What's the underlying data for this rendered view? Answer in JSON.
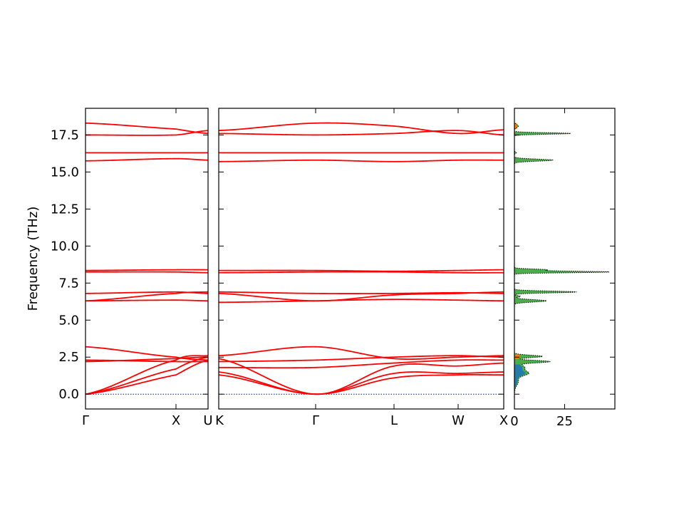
{
  "chart_data": {
    "type": "line",
    "ylabel": "Frequency (THz)",
    "ylim": [
      -1.0,
      19.3
    ],
    "yticks": [
      "0.0",
      "2.5",
      "5.0",
      "7.5",
      "10.0",
      "12.5",
      "15.0",
      "17.5"
    ],
    "colors": {
      "bands": "#ff0000",
      "zero_line": "#0000ff",
      "dos_total": "#000000",
      "dos_fill": "#2ca02c",
      "dos_low": "#1f77b4",
      "dos_high": "#ff7f0e"
    },
    "panels": [
      {
        "kpoints": [
          "Γ",
          "X",
          "U"
        ],
        "bands": [
          [
            0.0,
            1.3,
            2.3
          ],
          [
            0.0,
            1.7,
            2.5
          ],
          [
            0.0,
            2.3,
            2.6
          ],
          [
            2.2,
            2.4,
            2.5
          ],
          [
            2.3,
            2.2,
            2.2
          ],
          [
            3.2,
            2.5,
            2.3
          ],
          [
            6.3,
            6.35,
            6.3
          ],
          [
            6.3,
            6.8,
            6.9
          ],
          [
            6.8,
            6.9,
            6.8
          ],
          [
            8.25,
            8.25,
            8.2
          ],
          [
            8.35,
            8.4,
            8.4
          ],
          [
            15.75,
            15.9,
            15.8
          ],
          [
            16.3,
            16.3,
            16.3
          ],
          [
            17.5,
            17.5,
            17.8
          ],
          [
            18.3,
            17.9,
            17.6
          ]
        ]
      },
      {
        "kpoints": [
          "K",
          "Γ",
          "L",
          "W",
          "X"
        ],
        "bands": [
          [
            1.3,
            0.0,
            1.1,
            1.3,
            1.3
          ],
          [
            1.5,
            0.0,
            1.4,
            1.4,
            1.5
          ],
          [
            2.4,
            0.0,
            1.9,
            1.9,
            2.1
          ],
          [
            1.8,
            1.8,
            2.1,
            2.3,
            2.3
          ],
          [
            2.2,
            2.3,
            2.5,
            2.6,
            2.5
          ],
          [
            2.6,
            3.2,
            2.4,
            2.5,
            2.6
          ],
          [
            6.2,
            6.3,
            6.4,
            6.35,
            6.3
          ],
          [
            6.8,
            6.3,
            6.7,
            6.8,
            6.9
          ],
          [
            6.9,
            6.8,
            6.8,
            6.85,
            6.8
          ],
          [
            8.2,
            8.25,
            8.25,
            8.2,
            8.2
          ],
          [
            8.35,
            8.35,
            8.3,
            8.35,
            8.4
          ],
          [
            15.7,
            15.8,
            15.7,
            15.8,
            15.8
          ],
          [
            16.3,
            16.3,
            16.3,
            16.3,
            16.3
          ],
          [
            17.6,
            17.5,
            17.6,
            17.8,
            17.5
          ],
          [
            17.8,
            18.3,
            18.1,
            17.6,
            17.85
          ]
        ]
      }
    ],
    "dos": {
      "xticks": [
        "0",
        "25"
      ],
      "xlim": [
        0,
        50
      ],
      "peaks": [
        {
          "freq": 0.9,
          "height": 2,
          "width": 0.3
        },
        {
          "freq": 1.4,
          "height": 6,
          "width": 0.15
        },
        {
          "freq": 1.8,
          "height": 5,
          "width": 0.2
        },
        {
          "freq": 2.2,
          "height": 17,
          "width": 0.08
        },
        {
          "freq": 2.55,
          "height": 14,
          "width": 0.08
        },
        {
          "freq": 6.3,
          "height": 16,
          "width": 0.08
        },
        {
          "freq": 6.6,
          "height": 3,
          "width": 0.05
        },
        {
          "freq": 6.9,
          "height": 31,
          "width": 0.06
        },
        {
          "freq": 8.25,
          "height": 47,
          "width": 0.05
        },
        {
          "freq": 8.4,
          "height": 16,
          "width": 0.05
        },
        {
          "freq": 15.8,
          "height": 19,
          "width": 0.07
        },
        {
          "freq": 16.3,
          "height": 1,
          "width": 0.05
        },
        {
          "freq": 17.6,
          "height": 28,
          "width": 0.05
        },
        {
          "freq": 18.1,
          "height": 2,
          "width": 0.1
        }
      ]
    }
  }
}
